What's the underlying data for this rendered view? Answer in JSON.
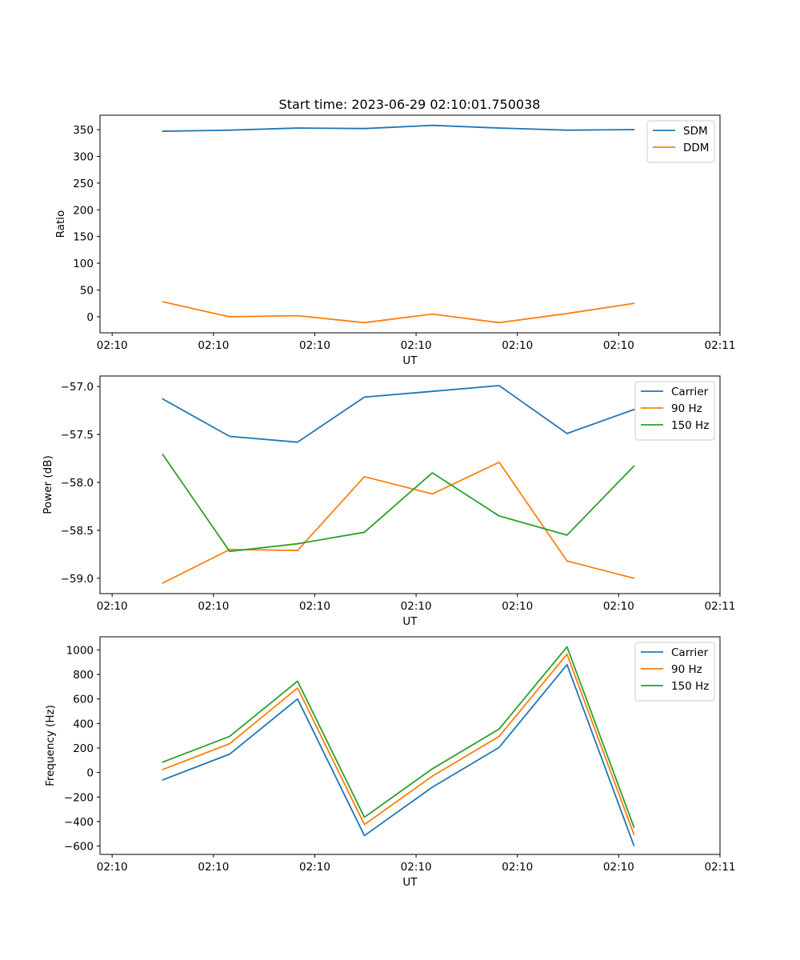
{
  "figure": {
    "title": "Start time: 2023-06-29 02:10:01.750038"
  },
  "colors": {
    "blue": "#1f77b4",
    "orange": "#ff7f0e",
    "green": "#2ca02c"
  },
  "chart_data": [
    {
      "type": "line",
      "xlabel": "UT",
      "ylabel": "Ratio",
      "x_tick_labels": [
        "02:10",
        "02:10",
        "02:10",
        "02:10",
        "02:10",
        "02:10",
        "02:11"
      ],
      "x_ticks": [
        0,
        10,
        20,
        30,
        40,
        50,
        60
      ],
      "xlim": [
        -1.2,
        60
      ],
      "y_ticks": [
        0,
        50,
        100,
        150,
        200,
        250,
        300,
        350
      ],
      "y_tick_labels": [
        "0",
        "50",
        "100",
        "150",
        "200",
        "250",
        "300",
        "350"
      ],
      "ylim": [
        -30,
        377
      ],
      "legend_position": "top-right",
      "x": [
        5,
        11.6,
        18.3,
        24.9,
        31.6,
        38.2,
        44.9,
        51.5
      ],
      "series": [
        {
          "name": "SDM",
          "color": "#1f77b4",
          "values": [
            347,
            349,
            353,
            352,
            358,
            353,
            349,
            350
          ]
        },
        {
          "name": "DDM",
          "color": "#ff7f0e",
          "values": [
            28,
            0,
            2,
            -11,
            5,
            -11,
            6,
            25
          ]
        }
      ]
    },
    {
      "type": "line",
      "xlabel": "UT",
      "ylabel": "Power (dB)",
      "x_tick_labels": [
        "02:10",
        "02:10",
        "02:10",
        "02:10",
        "02:10",
        "02:10",
        "02:11"
      ],
      "x_ticks": [
        0,
        10,
        20,
        30,
        40,
        50,
        60
      ],
      "xlim": [
        -1.2,
        60
      ],
      "y_ticks": [
        -57.0,
        -57.5,
        -58.0,
        -58.5,
        -59.0
      ],
      "y_tick_labels": [
        "−57.0",
        "−57.5",
        "−58.0",
        "−58.5",
        "−59.0"
      ],
      "ylim": [
        -59.16,
        -56.89
      ],
      "legend_position": "top-right",
      "x": [
        5,
        11.6,
        18.3,
        24.9,
        31.6,
        38.2,
        44.9,
        51.5
      ],
      "series": [
        {
          "name": "Carrier",
          "color": "#1f77b4",
          "values": [
            -57.13,
            -57.52,
            -57.58,
            -57.11,
            -57.05,
            -56.99,
            -57.49,
            -57.24
          ]
        },
        {
          "name": "90 Hz",
          "color": "#ff7f0e",
          "values": [
            -59.05,
            -58.7,
            -58.71,
            -57.94,
            -58.12,
            -57.79,
            -58.82,
            -59.0
          ]
        },
        {
          "name": "150 Hz",
          "color": "#2ca02c",
          "values": [
            -57.71,
            -58.72,
            -58.64,
            -58.52,
            -57.9,
            -58.35,
            -58.55,
            -57.83
          ]
        }
      ]
    },
    {
      "type": "line",
      "xlabel": "UT",
      "ylabel": "Frequency (Hz)",
      "x_tick_labels": [
        "02:10",
        "02:10",
        "02:10",
        "02:10",
        "02:10",
        "02:10",
        "02:11"
      ],
      "x_ticks": [
        0,
        10,
        20,
        30,
        40,
        50,
        60
      ],
      "xlim": [
        -1.2,
        60
      ],
      "y_ticks": [
        -600,
        -400,
        -200,
        0,
        200,
        400,
        600,
        800,
        1000
      ],
      "y_tick_labels": [
        "−600",
        "−400",
        "−200",
        "0",
        "200",
        "400",
        "600",
        "800",
        "1000"
      ],
      "ylim": [
        -668,
        1107
      ],
      "legend_position": "top-right",
      "x": [
        5,
        11.6,
        18.3,
        24.9,
        31.6,
        38.2,
        44.9,
        51.5
      ],
      "series": [
        {
          "name": "Carrier",
          "color": "#1f77b4",
          "values": [
            -60,
            150,
            600,
            -515,
            -120,
            205,
            880,
            -595
          ]
        },
        {
          "name": "90 Hz",
          "color": "#ff7f0e",
          "values": [
            25,
            235,
            690,
            -425,
            -30,
            295,
            965,
            -505
          ]
        },
        {
          "name": "150 Hz",
          "color": "#2ca02c",
          "values": [
            85,
            295,
            745,
            -365,
            30,
            355,
            1025,
            -445
          ]
        }
      ]
    }
  ]
}
